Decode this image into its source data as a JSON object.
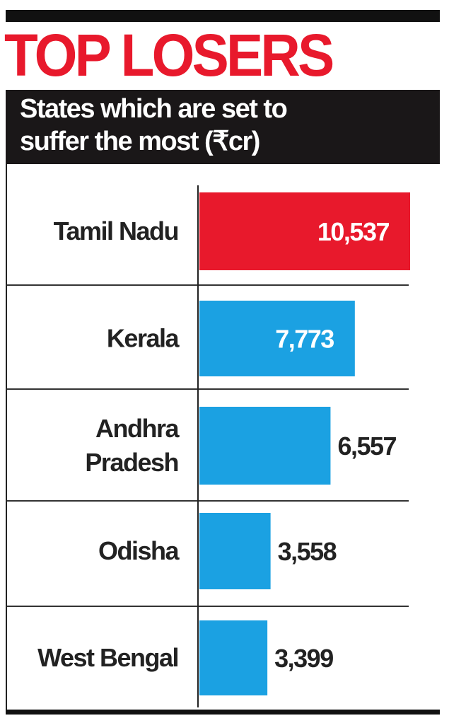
{
  "chart_data": {
    "type": "bar",
    "orientation": "horizontal",
    "title": "TOP LOSERS",
    "subtitle_lines": [
      "States which are set to",
      "suffer the most (₹cr)"
    ],
    "categories": [
      "Tamil Nadu",
      "Kerala",
      "Andhra Pradesh",
      "Odisha",
      "West Bengal"
    ],
    "category_lines": [
      [
        "Tamil Nadu"
      ],
      [
        "Kerala"
      ],
      [
        "Andhra",
        "Pradesh"
      ],
      [
        "Odisha"
      ],
      [
        "West Bengal"
      ]
    ],
    "values": [
      10537,
      7773,
      6557,
      3558,
      3399
    ],
    "value_labels": [
      "10,537",
      "7,773",
      "6,557",
      "3,558",
      "3,399"
    ],
    "bar_colors": [
      "#e8192c",
      "#1ba1e2",
      "#1ba1e2",
      "#1ba1e2",
      "#1ba1e2"
    ],
    "xlim": [
      0,
      10537
    ],
    "grid": false,
    "legend": "none"
  }
}
